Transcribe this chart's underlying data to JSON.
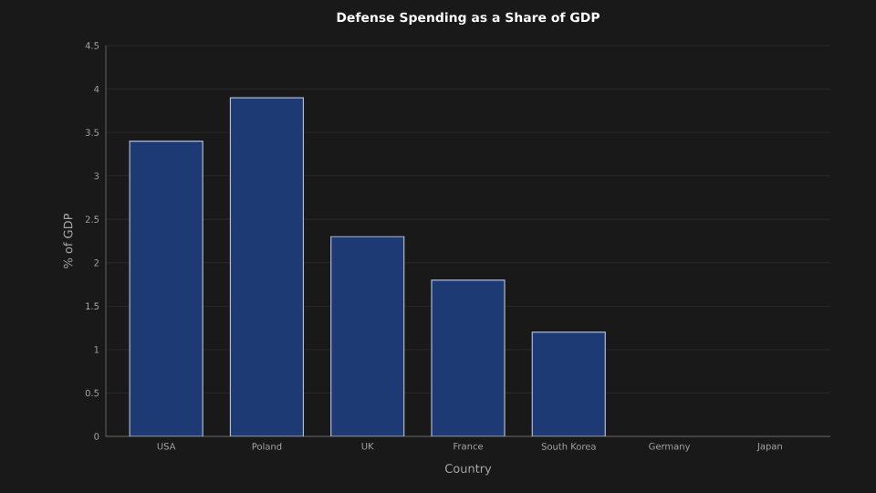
{
  "chart_data": {
    "type": "bar",
    "title": "Defense Spending as a Share of GDP",
    "xlabel": "Country",
    "ylabel": "% of GDP",
    "categories": [
      "USA",
      "Poland",
      "UK",
      "France",
      "South Korea",
      "Germany",
      "Japan"
    ],
    "values": [
      3.4,
      3.9,
      2.3,
      1.8,
      1.2,
      null,
      null
    ],
    "color": "#1e3a74",
    "ylim": [
      0,
      4.5
    ],
    "yticks": [
      0,
      0.5,
      1,
      1.5,
      2,
      2.5,
      3,
      3.5,
      4,
      4.5
    ],
    "grid": "y"
  }
}
